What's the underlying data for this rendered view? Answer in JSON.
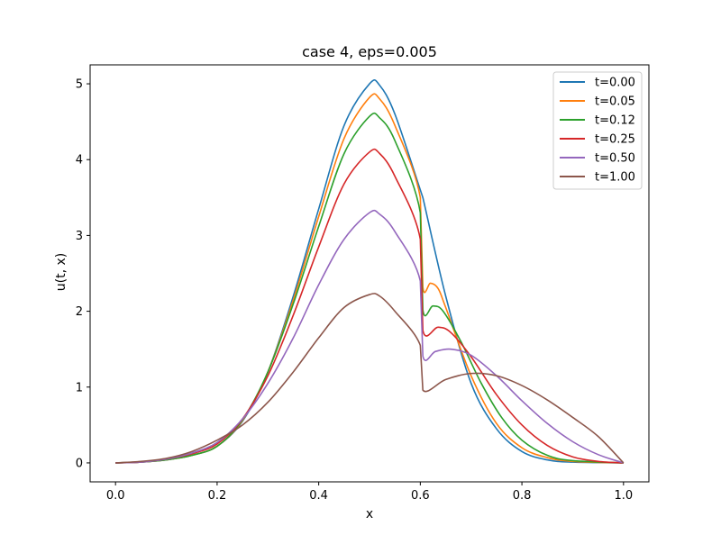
{
  "chart_data": {
    "type": "line",
    "title": "case 4, eps=0.005",
    "xlabel": "x",
    "ylabel": "u(t, x)",
    "xlim": [
      -0.05,
      1.05
    ],
    "ylim": [
      -0.25,
      5.25
    ],
    "xticks": [
      0.0,
      0.2,
      0.4,
      0.6,
      0.8,
      1.0
    ],
    "xtick_labels": [
      "0.0",
      "0.2",
      "0.4",
      "0.6",
      "0.8",
      "1.0"
    ],
    "yticks": [
      0,
      1,
      2,
      3,
      4,
      5
    ],
    "ytick_labels": [
      "0",
      "1",
      "2",
      "3",
      "4",
      "5"
    ],
    "grid": false,
    "legend_position": "top-right",
    "series": [
      {
        "name": "t=0.00",
        "color": "#1f77b4",
        "points": [
          [
            0.0,
            0.0
          ],
          [
            0.05,
            0.01
          ],
          [
            0.1,
            0.04
          ],
          [
            0.15,
            0.1
          ],
          [
            0.2,
            0.22
          ],
          [
            0.25,
            0.55
          ],
          [
            0.3,
            1.2
          ],
          [
            0.35,
            2.2
          ],
          [
            0.4,
            3.35
          ],
          [
            0.45,
            4.45
          ],
          [
            0.5,
            5.0
          ],
          [
            0.52,
            4.98
          ],
          [
            0.55,
            4.6
          ],
          [
            0.6,
            3.6
          ],
          [
            0.605,
            3.5
          ],
          [
            0.65,
            2.2
          ],
          [
            0.7,
            1.05
          ],
          [
            0.75,
            0.45
          ],
          [
            0.8,
            0.15
          ],
          [
            0.85,
            0.04
          ],
          [
            0.9,
            0.01
          ],
          [
            1.0,
            0.0
          ]
        ]
      },
      {
        "name": "t=0.05",
        "color": "#ff7f0e",
        "points": [
          [
            0.0,
            0.0
          ],
          [
            0.05,
            0.01
          ],
          [
            0.1,
            0.04
          ],
          [
            0.15,
            0.1
          ],
          [
            0.2,
            0.22
          ],
          [
            0.25,
            0.56
          ],
          [
            0.3,
            1.2
          ],
          [
            0.35,
            2.15
          ],
          [
            0.4,
            3.25
          ],
          [
            0.45,
            4.28
          ],
          [
            0.5,
            4.82
          ],
          [
            0.52,
            4.8
          ],
          [
            0.55,
            4.45
          ],
          [
            0.6,
            3.5
          ],
          [
            0.605,
            2.32
          ],
          [
            0.62,
            2.37
          ],
          [
            0.635,
            2.3
          ],
          [
            0.65,
            2.05
          ],
          [
            0.7,
            1.15
          ],
          [
            0.75,
            0.52
          ],
          [
            0.8,
            0.2
          ],
          [
            0.85,
            0.07
          ],
          [
            0.9,
            0.02
          ],
          [
            1.0,
            0.0
          ]
        ]
      },
      {
        "name": "t=0.12",
        "color": "#2ca02c",
        "points": [
          [
            0.0,
            0.0
          ],
          [
            0.05,
            0.01
          ],
          [
            0.1,
            0.04
          ],
          [
            0.15,
            0.1
          ],
          [
            0.2,
            0.22
          ],
          [
            0.25,
            0.57
          ],
          [
            0.3,
            1.2
          ],
          [
            0.35,
            2.1
          ],
          [
            0.4,
            3.12
          ],
          [
            0.45,
            4.08
          ],
          [
            0.5,
            4.57
          ],
          [
            0.52,
            4.55
          ],
          [
            0.55,
            4.25
          ],
          [
            0.6,
            3.3
          ],
          [
            0.605,
            2.02
          ],
          [
            0.625,
            2.07
          ],
          [
            0.645,
            2.0
          ],
          [
            0.68,
            1.6
          ],
          [
            0.72,
            1.05
          ],
          [
            0.76,
            0.6
          ],
          [
            0.8,
            0.3
          ],
          [
            0.85,
            0.1
          ],
          [
            0.9,
            0.03
          ],
          [
            1.0,
            0.0
          ]
        ]
      },
      {
        "name": "t=0.25",
        "color": "#d62728",
        "points": [
          [
            0.0,
            0.0
          ],
          [
            0.05,
            0.01
          ],
          [
            0.1,
            0.05
          ],
          [
            0.15,
            0.12
          ],
          [
            0.2,
            0.25
          ],
          [
            0.25,
            0.58
          ],
          [
            0.3,
            1.15
          ],
          [
            0.35,
            1.95
          ],
          [
            0.4,
            2.85
          ],
          [
            0.45,
            3.68
          ],
          [
            0.5,
            4.1
          ],
          [
            0.52,
            4.08
          ],
          [
            0.55,
            3.78
          ],
          [
            0.6,
            2.95
          ],
          [
            0.605,
            1.75
          ],
          [
            0.635,
            1.79
          ],
          [
            0.66,
            1.72
          ],
          [
            0.7,
            1.4
          ],
          [
            0.75,
            0.9
          ],
          [
            0.8,
            0.5
          ],
          [
            0.85,
            0.23
          ],
          [
            0.9,
            0.08
          ],
          [
            0.95,
            0.02
          ],
          [
            1.0,
            0.0
          ]
        ]
      },
      {
        "name": "t=0.50",
        "color": "#9467bd",
        "points": [
          [
            0.0,
            0.0
          ],
          [
            0.05,
            0.01
          ],
          [
            0.1,
            0.05
          ],
          [
            0.15,
            0.13
          ],
          [
            0.2,
            0.27
          ],
          [
            0.25,
            0.58
          ],
          [
            0.3,
            1.05
          ],
          [
            0.35,
            1.65
          ],
          [
            0.4,
            2.35
          ],
          [
            0.45,
            2.95
          ],
          [
            0.5,
            3.3
          ],
          [
            0.52,
            3.28
          ],
          [
            0.55,
            3.05
          ],
          [
            0.6,
            2.4
          ],
          [
            0.605,
            1.41
          ],
          [
            0.63,
            1.47
          ],
          [
            0.66,
            1.5
          ],
          [
            0.7,
            1.42
          ],
          [
            0.75,
            1.15
          ],
          [
            0.8,
            0.82
          ],
          [
            0.85,
            0.52
          ],
          [
            0.9,
            0.28
          ],
          [
            0.95,
            0.11
          ],
          [
            1.0,
            0.0
          ]
        ]
      },
      {
        "name": "t=1.00",
        "color": "#8c564b",
        "points": [
          [
            0.0,
            0.0
          ],
          [
            0.05,
            0.02
          ],
          [
            0.1,
            0.06
          ],
          [
            0.15,
            0.15
          ],
          [
            0.2,
            0.3
          ],
          [
            0.25,
            0.5
          ],
          [
            0.3,
            0.8
          ],
          [
            0.35,
            1.2
          ],
          [
            0.4,
            1.65
          ],
          [
            0.45,
            2.05
          ],
          [
            0.5,
            2.22
          ],
          [
            0.52,
            2.2
          ],
          [
            0.55,
            2.0
          ],
          [
            0.6,
            1.55
          ],
          [
            0.605,
            0.96
          ],
          [
            0.65,
            1.1
          ],
          [
            0.7,
            1.18
          ],
          [
            0.75,
            1.15
          ],
          [
            0.8,
            1.02
          ],
          [
            0.85,
            0.83
          ],
          [
            0.9,
            0.6
          ],
          [
            0.95,
            0.35
          ],
          [
            1.0,
            0.0
          ]
        ]
      }
    ]
  }
}
